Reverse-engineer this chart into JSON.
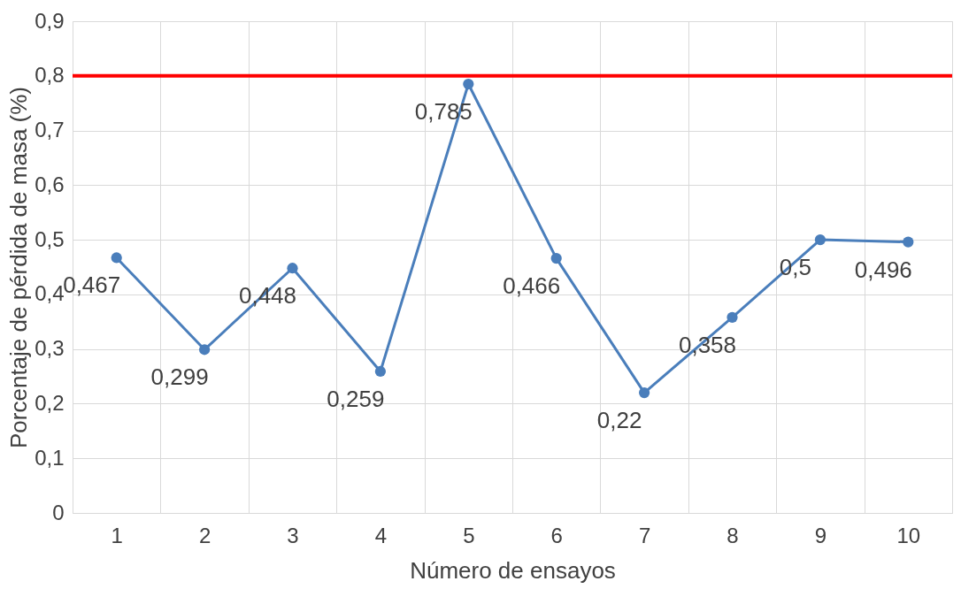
{
  "chart_data": {
    "type": "line",
    "xlabel": "Número de ensayos",
    "ylabel": "Porcentaje de pérdida de masa (%)",
    "categories": [
      "1",
      "2",
      "3",
      "4",
      "5",
      "6",
      "7",
      "8",
      "9",
      "10"
    ],
    "series": [
      {
        "color": "#4a7ebb",
        "values": [
          0.467,
          0.299,
          0.448,
          0.259,
          0.785,
          0.466,
          0.22,
          0.358,
          0.5,
          0.496
        ],
        "value_labels": [
          "0,467",
          "0,299",
          "0,448",
          "0,259",
          "0,785",
          "0,466",
          "0,22",
          "0,358",
          "0,5",
          "0,496"
        ]
      }
    ],
    "ylim": [
      0,
      0.9
    ],
    "yticks": [
      {
        "value": 0,
        "label": "0"
      },
      {
        "value": 0.1,
        "label": "0,1"
      },
      {
        "value": 0.2,
        "label": "0,2"
      },
      {
        "value": 0.3,
        "label": "0,3"
      },
      {
        "value": 0.4,
        "label": "0,4"
      },
      {
        "value": 0.5,
        "label": "0,5"
      },
      {
        "value": 0.6,
        "label": "0,6"
      },
      {
        "value": 0.7,
        "label": "0,7"
      },
      {
        "value": 0.8,
        "label": "0,8"
      },
      {
        "value": 0.9,
        "label": "0,9"
      }
    ],
    "ref_lines": [
      {
        "axis": "y",
        "value": 0.8,
        "color": "#ff0000"
      }
    ],
    "grid": true,
    "marker": "circle",
    "line_style": "solid"
  }
}
